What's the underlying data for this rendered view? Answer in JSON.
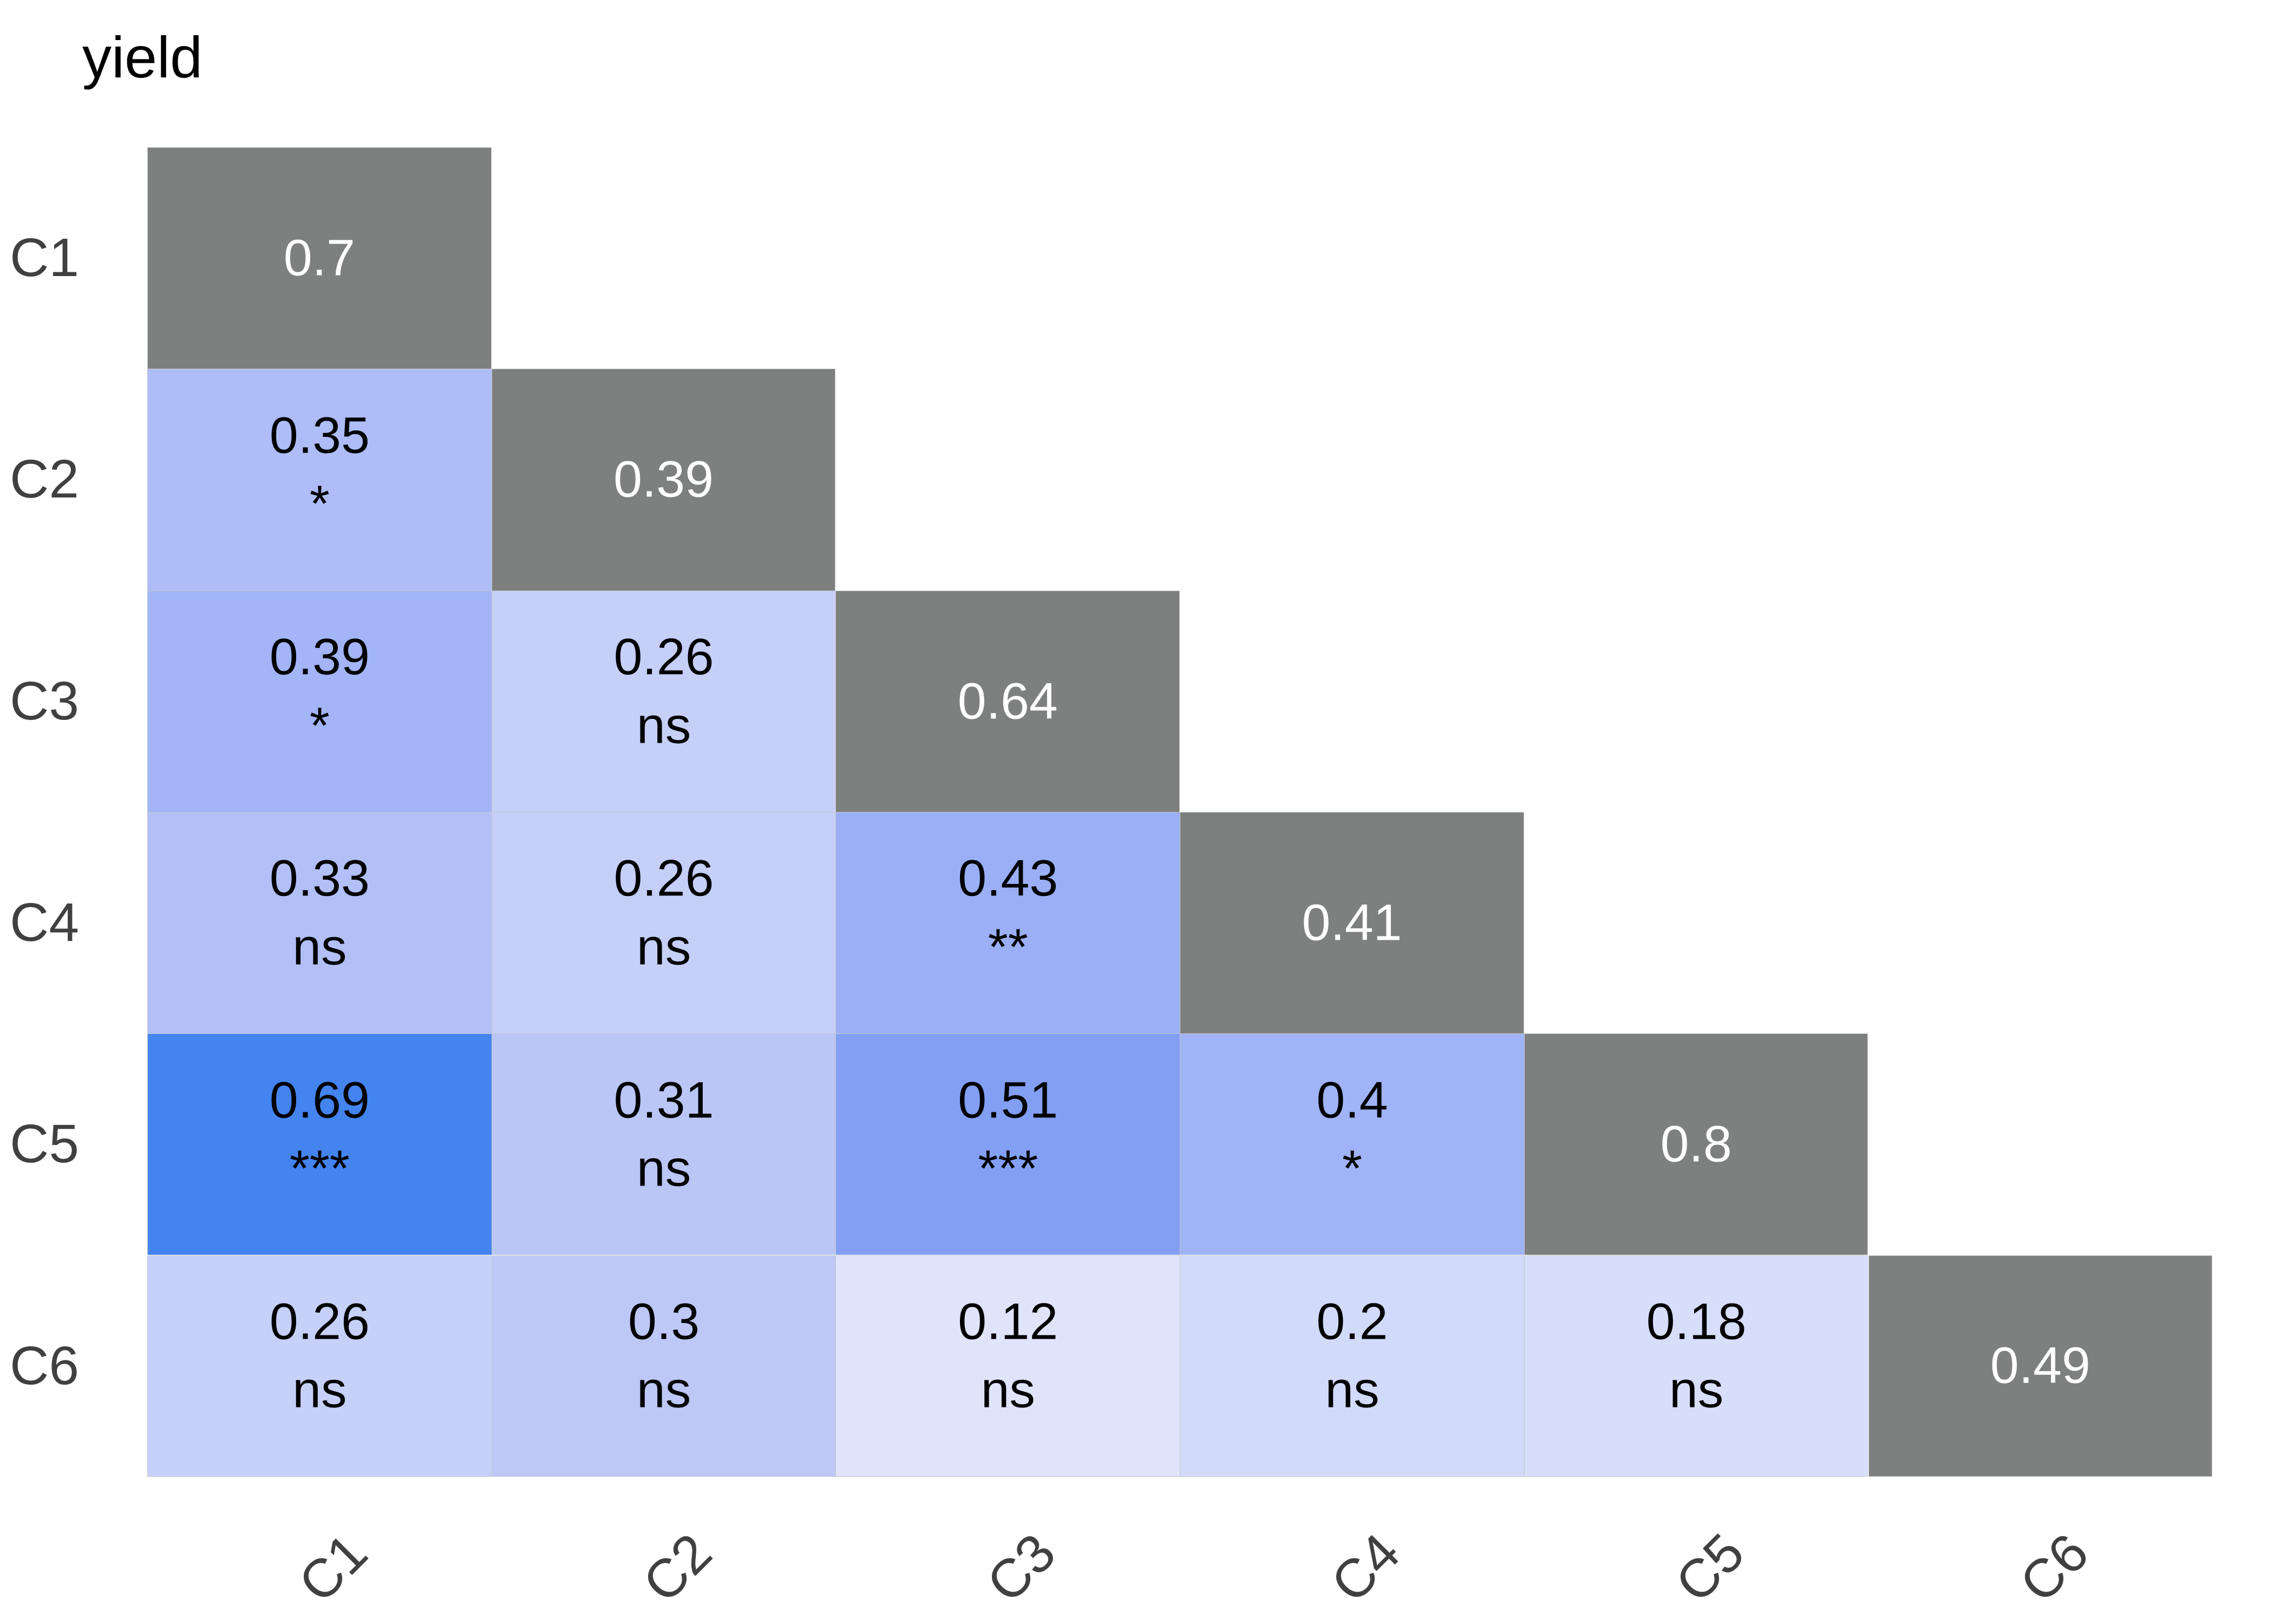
{
  "title": "yield",
  "chart_data": {
    "type": "heatmap",
    "title": "yield",
    "subtitle": "",
    "x_labels": [
      "C1",
      "C2",
      "C3",
      "C4",
      "C5",
      "C6"
    ],
    "y_labels": [
      "C1",
      "C2",
      "C3",
      "C4",
      "C5",
      "C6"
    ],
    "legend": "none",
    "grid": "thin light gridlines between tiles",
    "layout_hint": "lower-triangular correlation matrix, diagonal gray, x labels rotated 45deg",
    "palette": {
      "diagonal_fill": "#7e7f7f",
      "grid_line": "#c4c7ca",
      "axis_text": "#404040",
      "title_text": "#000000",
      "cell_text": "#000000",
      "diagonal_text": "#ffffff",
      "background": "#ffffff"
    },
    "cells": [
      {
        "row": "C1",
        "col": "C1",
        "label": "0.7",
        "value": 0.7,
        "sig": null,
        "diagonal": true,
        "fill": "#7e7f7f"
      },
      {
        "row": "C2",
        "col": "C1",
        "label": "0.35",
        "value": 0.35,
        "sig": "*",
        "diagonal": false,
        "fill": "#aebdf7"
      },
      {
        "row": "C2",
        "col": "C2",
        "label": "0.39",
        "value": 0.39,
        "sig": null,
        "diagonal": true,
        "fill": "#7e7f7f"
      },
      {
        "row": "C3",
        "col": "C1",
        "label": "0.39",
        "value": 0.39,
        "sig": "*",
        "diagonal": false,
        "fill": "#a3b5f7"
      },
      {
        "row": "C3",
        "col": "C2",
        "label": "0.26",
        "value": 0.26,
        "sig": "ns",
        "diagonal": false,
        "fill": "#c6cff8"
      },
      {
        "row": "C3",
        "col": "C3",
        "label": "0.64",
        "value": 0.64,
        "sig": null,
        "diagonal": true,
        "fill": "#7e7f7f"
      },
      {
        "row": "C4",
        "col": "C1",
        "label": "0.33",
        "value": 0.33,
        "sig": "ns",
        "diagonal": false,
        "fill": "#b2c0f7"
      },
      {
        "row": "C4",
        "col": "C2",
        "label": "0.26",
        "value": 0.26,
        "sig": "ns",
        "diagonal": false,
        "fill": "#c6cff8"
      },
      {
        "row": "C4",
        "col": "C3",
        "label": "0.43",
        "value": 0.43,
        "sig": "**",
        "diagonal": false,
        "fill": "#9aaff6"
      },
      {
        "row": "C4",
        "col": "C4",
        "label": "0.41",
        "value": 0.41,
        "sig": null,
        "diagonal": true,
        "fill": "#7e7f7f"
      },
      {
        "row": "C5",
        "col": "C1",
        "label": "0.69",
        "value": 0.69,
        "sig": "***",
        "diagonal": false,
        "fill": "#4484ef"
      },
      {
        "row": "C5",
        "col": "C2",
        "label": "0.31",
        "value": 0.31,
        "sig": "ns",
        "diagonal": false,
        "fill": "#bac6f5"
      },
      {
        "row": "C5",
        "col": "C3",
        "label": "0.51",
        "value": 0.51,
        "sig": "***",
        "diagonal": false,
        "fill": "#829ff4"
      },
      {
        "row": "C5",
        "col": "C4",
        "label": "0.4",
        "value": 0.4,
        "sig": "*",
        "diagonal": false,
        "fill": "#a0b3f6"
      },
      {
        "row": "C5",
        "col": "C5",
        "label": "0.8",
        "value": 0.8,
        "sig": null,
        "diagonal": true,
        "fill": "#7e7f7f"
      },
      {
        "row": "C6",
        "col": "C1",
        "label": "0.26",
        "value": 0.26,
        "sig": "ns",
        "diagonal": false,
        "fill": "#c7d0f8"
      },
      {
        "row": "C6",
        "col": "C2",
        "label": "0.3",
        "value": 0.3,
        "sig": "ns",
        "diagonal": false,
        "fill": "#bdc8f6"
      },
      {
        "row": "C6",
        "col": "C3",
        "label": "0.12",
        "value": 0.12,
        "sig": "ns",
        "diagonal": false,
        "fill": "#e0e4fb"
      },
      {
        "row": "C6",
        "col": "C4",
        "label": "0.2",
        "value": 0.2,
        "sig": "ns",
        "diagonal": false,
        "fill": "#d2dafa"
      },
      {
        "row": "C6",
        "col": "C5",
        "label": "0.18",
        "value": 0.18,
        "sig": "ns",
        "diagonal": false,
        "fill": "#d7defa"
      },
      {
        "row": "C6",
        "col": "C6",
        "label": "0.49",
        "value": 0.49,
        "sig": null,
        "diagonal": true,
        "fill": "#7e7f7f"
      }
    ]
  }
}
